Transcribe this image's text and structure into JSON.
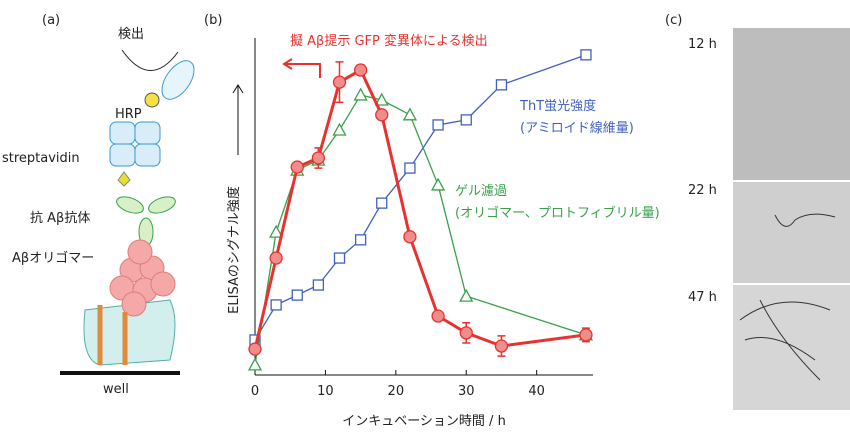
{
  "panel_a": {
    "label": "(a)",
    "detect": "検出",
    "hrp": "HRP",
    "streptavidin": "streptavidin",
    "antibody": "抗 Aβ抗体",
    "oligomer": "Aβオリゴマー",
    "well": "well"
  },
  "panel_c": {
    "label": "(c)",
    "times": [
      "12 h",
      "22 h",
      "47 h"
    ]
  },
  "chart_data": {
    "type": "line",
    "panel_label": "(b)",
    "x_label": "インキュベーション時間 / h",
    "y_label": "ELISAのシグナル強度",
    "xlim": [
      0,
      48
    ],
    "xticks": [
      0,
      10,
      20,
      30,
      40
    ],
    "ylim": [
      0,
      100
    ],
    "series": [
      {
        "name": "擬 Aβ提示 GFP 変異体による検出",
        "color": "#e8322f",
        "marker": "circle",
        "x": [
          0,
          3,
          6,
          9,
          12,
          15,
          18,
          22,
          26,
          30,
          35,
          47
        ],
        "values": [
          7.7,
          34.7,
          61.7,
          64.4,
          86.9,
          90.5,
          77.2,
          41,
          17.5,
          12.5,
          8.6,
          11.9
        ],
        "errors": [
          null,
          null,
          null,
          3,
          6,
          1.5,
          null,
          null,
          null,
          3,
          3,
          2
        ]
      },
      {
        "name": "ゲル濾過",
        "color": "#3aa04a",
        "marker": "triangle",
        "x": [
          0,
          3,
          6,
          9,
          12,
          15,
          18,
          22,
          26,
          30,
          47
        ],
        "values": [
          3,
          42.4,
          60.8,
          63.8,
          72.7,
          83.1,
          81.6,
          77.2,
          56.4,
          23.4,
          11.9
        ]
      },
      {
        "name": "ThT蛍光強度",
        "color": "#4060c0",
        "marker": "square",
        "x": [
          0,
          3,
          6,
          9,
          12,
          15,
          18,
          22,
          26,
          30,
          35,
          47
        ],
        "values": [
          10.4,
          20.8,
          23.7,
          26.7,
          34.7,
          40.1,
          51,
          61.4,
          74.2,
          75.7,
          86.1,
          95
        ]
      }
    ],
    "annotations": [
      "(アミロイド線維量)",
      "(オリゴマー、プロトフィブリル量)"
    ]
  }
}
